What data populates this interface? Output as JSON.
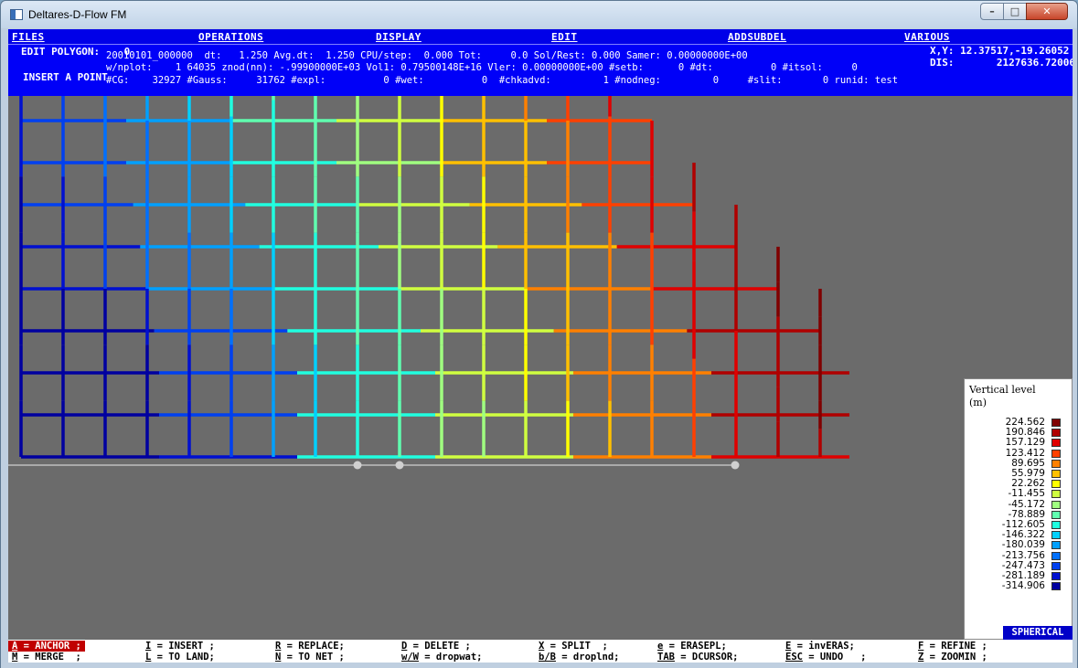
{
  "window": {
    "title": "Deltares-D-Flow FM"
  },
  "menu": [
    "FILES",
    "OPERATIONS",
    "DISPLAY",
    "EDIT",
    "ADDSUBDEL",
    "VARIOUS"
  ],
  "status": {
    "edit_mode": "EDIT POLYGON:    0",
    "insert_mode": "INSERT A POINT",
    "line1": "20010101_000000  dt:   1.250 Avg.dt:  1.250 CPU/step:  0.000 Tot:     0.0 Sol/Rest: 0.000 Samer: 0.00000000E+00",
    "line2": "w/nplot:    1 64035 znod(nn): -.99900000E+03 Vol1: 0.79500148E+16 Vler: 0.00000000E+00 #setb:      0 #dt:          0 #itsol:     0",
    "line3": "#CG:    32927 #Gauss:     31762 #expl:          0 #wet:          0  #chkadvd:         1 #nodneg:         0     #slit:       0 runid: test",
    "xy": "X,Y: 12.37517,-19.26052",
    "dis": "DIS:       2127636.72006"
  },
  "legend": {
    "title": "Vertical level",
    "unit": "(m)",
    "levels": [
      {
        "value": "224.562",
        "color": "#800000"
      },
      {
        "value": "190.846",
        "color": "#b00000"
      },
      {
        "value": "157.129",
        "color": "#e00000"
      },
      {
        "value": "123.412",
        "color": "#ff4000"
      },
      {
        "value": "89.695",
        "color": "#ff8000"
      },
      {
        "value": "55.979",
        "color": "#ffc000"
      },
      {
        "value": "22.262",
        "color": "#ffff00"
      },
      {
        "value": "-11.455",
        "color": "#d0ff40"
      },
      {
        "value": "-45.172",
        "color": "#a0ff80"
      },
      {
        "value": "-78.889",
        "color": "#60ffb0"
      },
      {
        "value": "-112.605",
        "color": "#20ffe0"
      },
      {
        "value": "-146.322",
        "color": "#00d0ff"
      },
      {
        "value": "-180.039",
        "color": "#00a0ff"
      },
      {
        "value": "-213.756",
        "color": "#0070ff"
      },
      {
        "value": "-247.473",
        "color": "#0040f0"
      },
      {
        "value": "-281.189",
        "color": "#0010d0"
      },
      {
        "value": "-314.906",
        "color": "#0000a0"
      }
    ]
  },
  "badge": "SPHERICAL",
  "keys": [
    {
      "key": "A",
      "label": " = ANCHOR ;",
      "active": true
    },
    {
      "key": "I",
      "label": " = INSERT ;"
    },
    {
      "key": "R",
      "label": " = REPLACE;"
    },
    {
      "key": "D",
      "label": " = DELETE ;"
    },
    {
      "key": "X",
      "label": " = SPLIT  ;"
    },
    {
      "key": "e",
      "label": " = ERASEPL;"
    },
    {
      "key": "E",
      "label": " = invERAS;"
    },
    {
      "key": "F",
      "label": " = REFINE ;"
    },
    {
      "key": "M",
      "label": " = MERGE  ;"
    },
    {
      "key": "L",
      "label": " = TO LAND;"
    },
    {
      "key": "N",
      "label": " = TO NET ;"
    },
    {
      "key": "w/W",
      "label": " = dropwat;"
    },
    {
      "key": "b/B",
      "label": " = droplnd;"
    },
    {
      "key": "TAB",
      "label": " = DCURSOR;"
    },
    {
      "key": "ESC",
      "label": " = UNDO   ;"
    },
    {
      "key": "Z",
      "label": " = ZOOMIN ;"
    }
  ]
}
